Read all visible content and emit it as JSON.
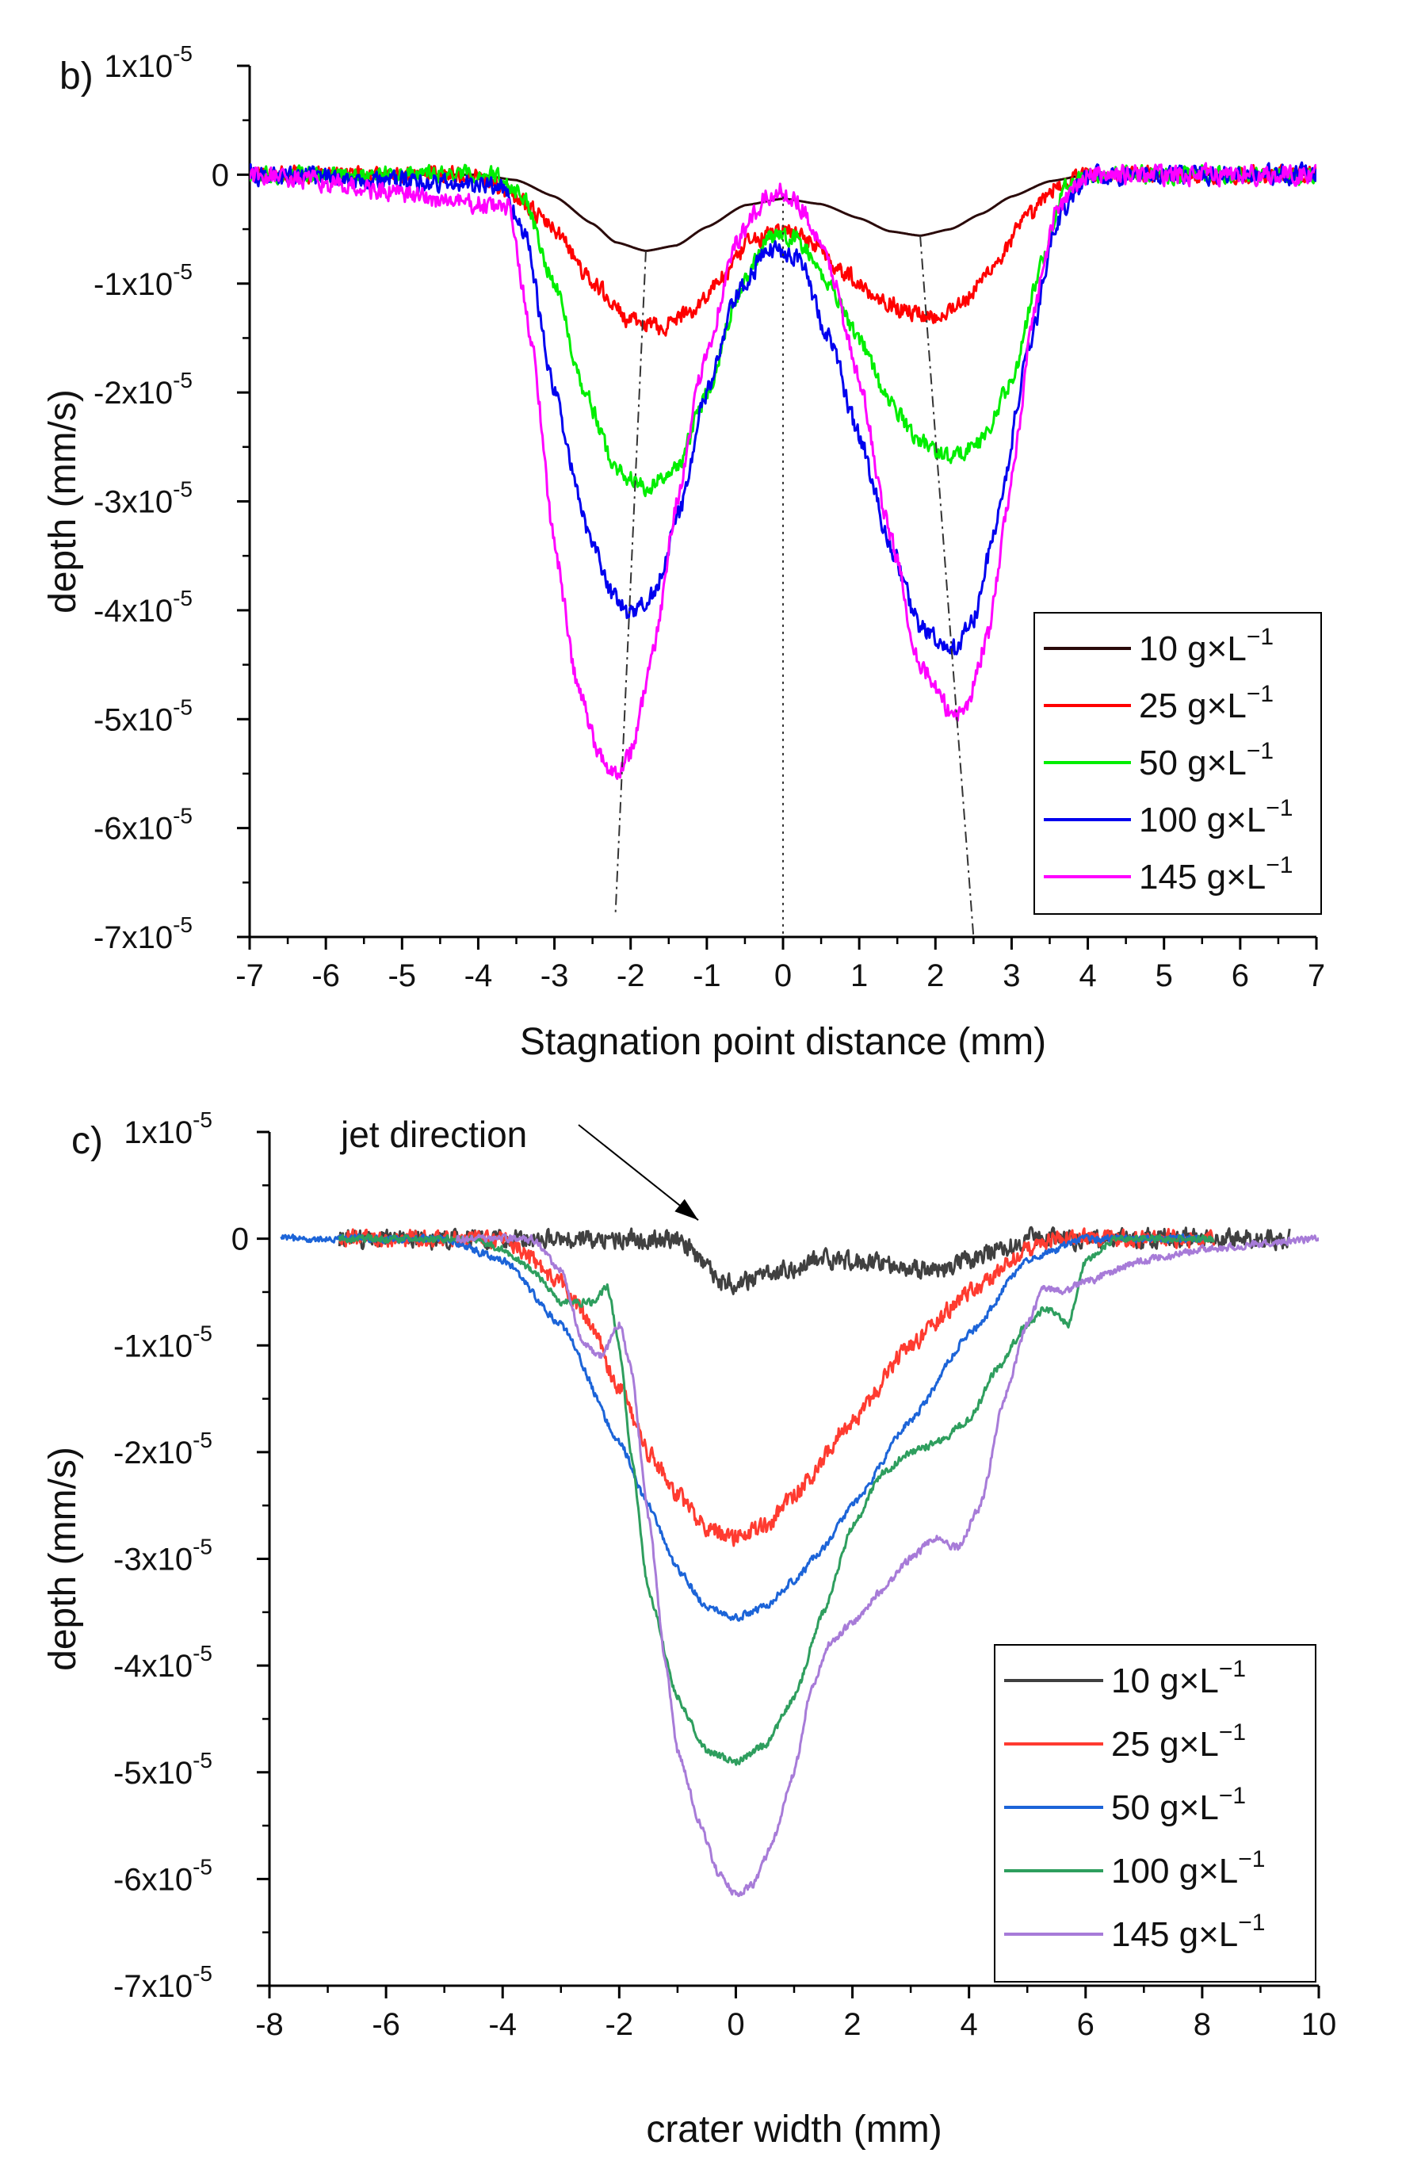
{
  "chart_data": [
    {
      "type": "line",
      "panel_label": "b)",
      "xlabel": "Stagnation point distance (mm)",
      "ylabel": "depth (mm/s)",
      "xlim": [
        -7,
        7
      ],
      "ylim": [
        -7e-05,
        1e-05
      ],
      "x_ticks": [
        -7,
        -6,
        -5,
        -4,
        -3,
        -2,
        -1,
        0,
        1,
        2,
        3,
        4,
        5,
        6,
        7
      ],
      "y_ticks": [
        {
          "value": 1e-05,
          "mant": "1x10",
          "exp": "-5"
        },
        {
          "value": 0,
          "mant": "0",
          "exp": ""
        },
        {
          "value": -1e-05,
          "mant": "-1x10",
          "exp": "-5"
        },
        {
          "value": -2e-05,
          "mant": "-2x10",
          "exp": "-5"
        },
        {
          "value": -3e-05,
          "mant": "-3x10",
          "exp": "-5"
        },
        {
          "value": -4e-05,
          "mant": "-4x10",
          "exp": "-5"
        },
        {
          "value": -5e-05,
          "mant": "-5x10",
          "exp": "-5"
        },
        {
          "value": -6e-05,
          "mant": "-6x10",
          "exp": "-5"
        },
        {
          "value": -7e-05,
          "mant": "-7x10",
          "exp": "-5"
        }
      ],
      "legend_position": "bottom-right",
      "grid": false,
      "series": [
        {
          "name": "10 g×L",
          "name_sup": "−1",
          "color": "#2a0a0a",
          "noise": 0,
          "x": [
            -7,
            -4,
            -3.5,
            -3,
            -2.5,
            -2.2,
            -1.8,
            -1.4,
            -1,
            -0.5,
            0,
            0.5,
            1,
            1.4,
            1.8,
            2.2,
            2.6,
            3,
            3.5,
            4,
            7
          ],
          "y": [
            0,
            0,
            -5e-07,
            -2e-06,
            -4.5e-06,
            -6.2e-06,
            -7e-06,
            -6.5e-06,
            -4.8e-06,
            -2.8e-06,
            -2.2e-06,
            -2.7e-06,
            -4e-06,
            -5.2e-06,
            -5.6e-06,
            -5e-06,
            -3.6e-06,
            -2e-06,
            -6e-07,
            0,
            0
          ]
        },
        {
          "name": "25 g×L",
          "name_sup": "−1",
          "color": "#ff0000",
          "noise": 7e-07,
          "x": [
            -7,
            -4,
            -3.5,
            -3,
            -2.5,
            -2,
            -1.6,
            -1.2,
            -0.8,
            -0.4,
            0,
            0.4,
            0.8,
            1.2,
            1.6,
            2,
            2.4,
            2.8,
            3.2,
            3.6,
            4,
            7
          ],
          "y": [
            0,
            0,
            -2e-06,
            -5e-06,
            -1e-05,
            -1.35e-05,
            -1.4e-05,
            -1.25e-05,
            -9.5e-06,
            -6e-06,
            -5e-06,
            -6.2e-06,
            -9e-06,
            -1.1e-05,
            -1.25e-05,
            -1.3e-05,
            -1.15e-05,
            -8e-06,
            -4e-06,
            -1e-06,
            0,
            0
          ]
        },
        {
          "name": "50 g×L",
          "name_sup": "−1",
          "color": "#00ee00",
          "noise": 7e-07,
          "x": [
            -7,
            -3.8,
            -3.4,
            -3,
            -2.6,
            -2.2,
            -1.8,
            -1.4,
            -1,
            -0.6,
            -0.2,
            0,
            0.2,
            0.6,
            1,
            1.4,
            1.8,
            2.2,
            2.6,
            3,
            3.4,
            3.7,
            4,
            7
          ],
          "y": [
            0,
            0,
            -2e-06,
            -1e-05,
            -2e-05,
            -2.7e-05,
            -2.88e-05,
            -2.7e-05,
            -2e-05,
            -1.1e-05,
            -6e-06,
            -5.5e-06,
            -6e-06,
            -1e-05,
            -1.5e-05,
            -2.1e-05,
            -2.45e-05,
            -2.6e-05,
            -2.45e-05,
            -1.9e-05,
            -8e-06,
            -1e-06,
            0,
            0
          ]
        },
        {
          "name": "100 g×L",
          "name_sup": "−1",
          "color": "#0000ee",
          "noise": 8e-07,
          "x": [
            -7,
            -3.7,
            -3.4,
            -3,
            -2.6,
            -2.2,
            -2,
            -1.7,
            -1.4,
            -1,
            -0.6,
            -0.2,
            0,
            0.2,
            0.6,
            1,
            1.4,
            1.8,
            2.2,
            2.5,
            2.8,
            3.2,
            3.6,
            4,
            7
          ],
          "y": [
            0,
            -1e-06,
            -5e-06,
            -2e-05,
            -3.2e-05,
            -3.9e-05,
            -4.05e-05,
            -3.85e-05,
            -3.2e-05,
            -2e-05,
            -1.1e-05,
            -7e-06,
            -6.8e-06,
            -7.5e-06,
            -1.5e-05,
            -2.4e-05,
            -3.4e-05,
            -4.15e-05,
            -4.4e-05,
            -4.1e-05,
            -3.2e-05,
            -1.7e-05,
            -4e-06,
            0,
            0
          ]
        },
        {
          "name": "145 g×L",
          "name_sup": "−1",
          "color": "#ff00ff",
          "noise": 8e-07,
          "x": [
            -7,
            -3.6,
            -3.3,
            -3,
            -2.7,
            -2.4,
            -2.2,
            -2,
            -1.7,
            -1.4,
            -1,
            -0.6,
            -0.2,
            0,
            0.2,
            0.6,
            1,
            1.4,
            1.8,
            2.2,
            2.4,
            2.7,
            3,
            3.3,
            3.6,
            4,
            7
          ],
          "y": [
            0,
            -3e-06,
            -1.5e-05,
            -3.4e-05,
            -4.7e-05,
            -5.35e-05,
            -5.5e-05,
            -5.3e-05,
            -4.4e-05,
            -3e-05,
            -1.6e-05,
            -6e-06,
            -2e-06,
            -1.5e-06,
            -2.5e-06,
            -8e-06,
            -1.9e-05,
            -3.3e-05,
            -4.5e-05,
            -4.95e-05,
            -4.9e-05,
            -4.2e-05,
            -2.8e-05,
            -1.2e-05,
            -3e-06,
            0,
            0
          ]
        }
      ],
      "guide_lines": [
        {
          "style": "dashdot",
          "x": [
            -1.8,
            -2.2
          ],
          "y": [
            -7e-06,
            -6.8e-05
          ]
        },
        {
          "style": "dashdot",
          "x": [
            1.8,
            2.5
          ],
          "y": [
            -5.6e-06,
            -7e-05
          ]
        },
        {
          "style": "dotted",
          "x": [
            0,
            0
          ],
          "y": [
            -2e-06,
            -7e-05
          ]
        }
      ]
    },
    {
      "type": "line",
      "panel_label": "c)",
      "xlabel": "crater width (mm)",
      "ylabel": "depth (mm/s)",
      "xlim": [
        -8,
        10
      ],
      "ylim": [
        -7e-05,
        1e-05
      ],
      "x_ticks": [
        -8,
        -6,
        -4,
        -2,
        0,
        2,
        4,
        6,
        8,
        10
      ],
      "y_ticks": [
        {
          "value": 1e-05,
          "mant": "1x10",
          "exp": "-5"
        },
        {
          "value": 0,
          "mant": "0",
          "exp": ""
        },
        {
          "value": -1e-05,
          "mant": "-1x10",
          "exp": "-5"
        },
        {
          "value": -2e-05,
          "mant": "-2x10",
          "exp": "-5"
        },
        {
          "value": -3e-05,
          "mant": "-3x10",
          "exp": "-5"
        },
        {
          "value": -4e-05,
          "mant": "-4x10",
          "exp": "-5"
        },
        {
          "value": -5e-05,
          "mant": "-5x10",
          "exp": "-5"
        },
        {
          "value": -6e-05,
          "mant": "-6x10",
          "exp": "-5"
        },
        {
          "value": -7e-05,
          "mant": "-7x10",
          "exp": "-5"
        }
      ],
      "legend_position": "bottom-right",
      "grid": false,
      "annotation": {
        "text": "jet direction",
        "arrow_to": [
          -0.4,
          1e-06
        ]
      },
      "series": [
        {
          "name": "10 g×L",
          "name_sup": "−1",
          "color": "#404040",
          "noise": 8e-07,
          "x": [
            -6.8,
            -2,
            -1,
            -0.6,
            -0.3,
            0,
            0.3,
            0.8,
            1.5,
            2.5,
            3.5,
            4.5,
            5,
            6,
            8,
            9.5
          ],
          "y": [
            0,
            0,
            0,
            -2e-06,
            -4e-06,
            -4.3e-06,
            -3.8e-06,
            -3e-06,
            -2e-06,
            -2.2e-06,
            -3e-06,
            -1e-06,
            0,
            0,
            0,
            0
          ]
        },
        {
          "name": "25 g×L",
          "name_sup": "−1",
          "color": "#ff3b30",
          "noise": 7e-07,
          "x": [
            -6.8,
            -4.5,
            -4,
            -3,
            -2.5,
            -2,
            -1.5,
            -1,
            -0.5,
            0,
            0.5,
            1,
            2,
            3,
            4,
            5,
            5.5,
            6,
            8.2
          ],
          "y": [
            0,
            0,
            0,
            -4e-06,
            -8e-06,
            -1.4e-05,
            -2e-05,
            -2.4e-05,
            -2.7e-05,
            -2.8e-05,
            -2.7e-05,
            -2.4e-05,
            -1.7e-05,
            -1e-05,
            -5e-06,
            -1e-06,
            0,
            0,
            0
          ]
        },
        {
          "name": "50 g×L",
          "name_sup": "−1",
          "color": "#1c64d8",
          "noise": 3e-07,
          "x": [
            -7.8,
            -5,
            -4,
            -3,
            -2,
            -1.5,
            -1,
            -0.5,
            0,
            0.5,
            1,
            1.5,
            2,
            3,
            4,
            5,
            6,
            7,
            8
          ],
          "y": [
            0,
            0,
            -2e-06,
            -8e-06,
            -1.9e-05,
            -2.5e-05,
            -3.1e-05,
            -3.45e-05,
            -3.55e-05,
            -3.45e-05,
            -3.2e-05,
            -2.9e-05,
            -2.5e-05,
            -1.7e-05,
            -9e-06,
            -2e-06,
            0,
            0,
            0
          ]
        },
        {
          "name": "100 g×L",
          "name_sup": "−1",
          "color": "#2e9e5e",
          "noise": 3e-07,
          "x": [
            -6.8,
            -4.5,
            -4,
            -3.5,
            -3,
            -2.5,
            -2.2,
            -2,
            -1.8,
            -1.5,
            -1,
            -0.5,
            0,
            0.5,
            1,
            1.5,
            2,
            2.5,
            3,
            3.5,
            4,
            4.5,
            5,
            5.3,
            5.7,
            6,
            6.5,
            8.2
          ],
          "y": [
            0,
            0,
            -1e-06,
            -3e-06,
            -6e-06,
            -6e-06,
            -4.5e-06,
            -1e-05,
            -2e-05,
            -3.3e-05,
            -4.3e-05,
            -4.8e-05,
            -4.9e-05,
            -4.75e-05,
            -4.3e-05,
            -3.5e-05,
            -2.7e-05,
            -2.2e-05,
            -2e-05,
            -1.9e-05,
            -1.7e-05,
            -1.2e-05,
            -8e-06,
            -6.5e-06,
            -8e-06,
            -2e-06,
            0,
            0
          ]
        },
        {
          "name": "145 g×L",
          "name_sup": "−1",
          "color": "#a77bd8",
          "noise": 3e-07,
          "x": [
            -4.8,
            -3.5,
            -3,
            -2.6,
            -2.3,
            -2,
            -1.8,
            -1.5,
            -1.2,
            -1,
            -0.6,
            -0.3,
            0,
            0.3,
            0.6,
            1,
            1.3,
            1.6,
            2,
            2.5,
            3,
            3.4,
            3.8,
            4.2,
            4.6,
            5,
            5.3,
            5.6,
            6,
            7,
            8,
            10
          ],
          "y": [
            0,
            0,
            -3e-06,
            -1e-05,
            -1.1e-05,
            -8e-06,
            -1.2e-05,
            -2.6e-05,
            -4e-05,
            -4.8e-05,
            -5.5e-05,
            -5.95e-05,
            -6.15e-05,
            -6.05e-05,
            -5.7e-05,
            -5e-05,
            -4.2e-05,
            -3.8e-05,
            -3.6e-05,
            -3.3e-05,
            -3e-05,
            -2.8e-05,
            -2.9e-05,
            -2.5e-05,
            -1.5e-05,
            -8e-06,
            -4.5e-06,
            -5e-06,
            -4e-06,
            -2e-06,
            -1e-06,
            0
          ]
        }
      ]
    }
  ]
}
